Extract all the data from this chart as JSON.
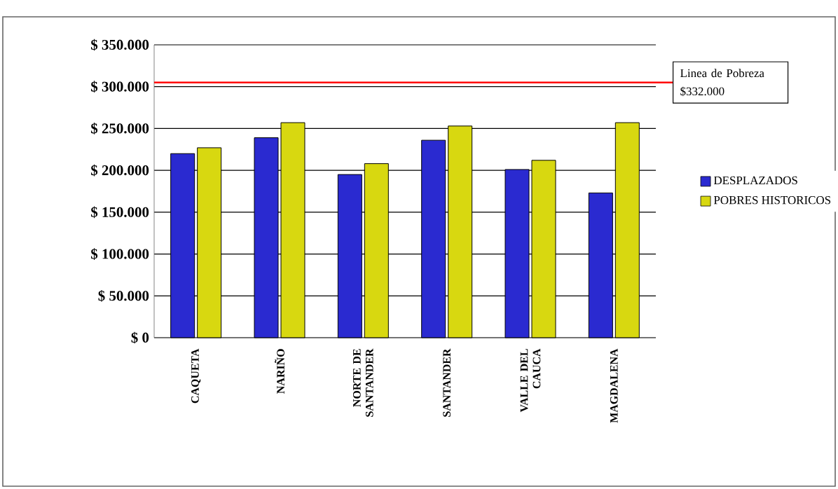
{
  "chart_data": {
    "type": "bar",
    "categories": [
      "CAQUETA",
      "NARIÑO",
      "NORTE DE SANTANDER",
      "SANTANDER",
      "VALLE DEL CAUCA",
      "MAGDALENA"
    ],
    "series": [
      {
        "name": "DESPLAZADOS",
        "color": "#2a2ad0",
        "values": [
          220000,
          239000,
          195000,
          236000,
          201000,
          173000
        ]
      },
      {
        "name": "POBRES HISTORICOS",
        "color": "#d8d810",
        "values": [
          227000,
          257000,
          208000,
          253000,
          212000,
          257000
        ]
      }
    ],
    "ylim": [
      0,
      350000
    ],
    "yticks": [
      {
        "value": 0,
        "label": "$ 0"
      },
      {
        "value": 50000,
        "label": "$ 50.000"
      },
      {
        "value": 100000,
        "label": "$ 100.000"
      },
      {
        "value": 150000,
        "label": "$ 150.000"
      },
      {
        "value": 200000,
        "label": "$ 200.000"
      },
      {
        "value": 250000,
        "label": "$ 250.000"
      },
      {
        "value": 300000,
        "label": "$ 300.000"
      },
      {
        "value": 350000,
        "label": "$ 350.000"
      }
    ],
    "grid": "y",
    "legend": "right",
    "ref_lines": [
      {
        "axis": "y",
        "value": 305000,
        "label": "Linea de Pobreza $332.000",
        "color": "#ff0000"
      }
    ]
  }
}
